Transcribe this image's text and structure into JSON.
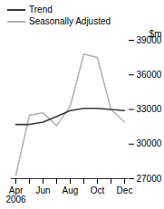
{
  "chart_data": {
    "type": "line",
    "categories": [
      "Apr\n2006",
      null,
      "Jun",
      null,
      "Aug",
      null,
      "Oct",
      null,
      "Dec"
    ],
    "series": [
      {
        "name": "Trend",
        "color": "#3a3a3a",
        "values": [
          31700,
          31700,
          31900,
          32400,
          32900,
          33100,
          33100,
          33000,
          32900
        ]
      },
      {
        "name": "Seasonally Adjusted",
        "color": "#b4b4b4",
        "values": [
          27300,
          32500,
          32700,
          31600,
          33300,
          37800,
          37500,
          33000,
          31900
        ]
      }
    ],
    "y_label": "$m",
    "ylim": [
      27000,
      39000
    ],
    "yticks": [
      27000,
      30000,
      33000,
      36000,
      39000
    ],
    "grid": false,
    "legend": "top-left"
  }
}
